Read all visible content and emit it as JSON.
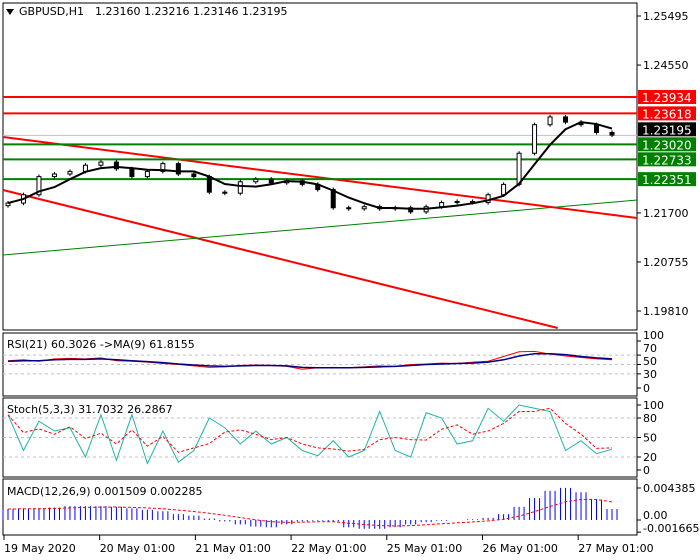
{
  "header": {
    "symbol": "GBPUSD,H1",
    "ohlc": "1.23160 1.23216 1.23146 1.23195",
    "menu_icon": "triangle-down-icon"
  },
  "colors": {
    "resistance": "#ff0000",
    "support": "#008000",
    "current": "#000000",
    "rsi": "#ff0000",
    "rsi_ma": "#000080",
    "stoch_main": "#20b2aa",
    "stoch_signal": "#ff0000",
    "macd_hist": "#0000ff",
    "macd_signal": "#ff0000"
  },
  "price_axis": {
    "ticks": [
      "1.25495",
      "1.24550",
      "1.21700",
      "1.20755",
      "1.19810"
    ],
    "tick_values": [
      1.25495,
      1.2455,
      1.217,
      1.20755,
      1.1981
    ]
  },
  "levels": [
    {
      "label": "1.23934",
      "value": 1.23934,
      "kind": "resistance"
    },
    {
      "label": "1.23618",
      "value": 1.23618,
      "kind": "resistance"
    },
    {
      "label": "1.23195",
      "value": 1.23195,
      "kind": "current"
    },
    {
      "label": "1.23020",
      "value": 1.2302,
      "kind": "support"
    },
    {
      "label": "1.22733",
      "value": 1.22733,
      "kind": "support"
    },
    {
      "label": "1.22351",
      "value": 1.22351,
      "kind": "support"
    }
  ],
  "trendlines": [
    {
      "kind": "resistance",
      "from": 1.23163,
      "to": 1.21602
    },
    {
      "kind": "resistance",
      "from": 1.22142,
      "to": 1.19482,
      "end_fraction": 0.875
    },
    {
      "kind": "support",
      "from": 1.20889,
      "to": 1.21949
    }
  ],
  "chart_data": {
    "type": "candlestick",
    "closes": [
      1.2189,
      1.2205,
      1.224,
      1.2245,
      1.225,
      1.2262,
      1.2268,
      1.2255,
      1.224,
      1.225,
      1.2265,
      1.2245,
      1.224,
      1.221,
      1.2208,
      1.223,
      1.2235,
      1.2228,
      1.2232,
      1.2225,
      1.2215,
      1.218,
      1.2178,
      1.2182,
      1.2178,
      1.218,
      1.2172,
      1.2182,
      1.219,
      1.2192,
      1.219,
      1.2205,
      1.2225,
      1.2285,
      1.234,
      1.2355,
      1.2345,
      1.234,
      1.2325,
      1.232
    ],
    "rsi": {
      "label": "RSI(21) 60.3026  ->MA(9) 61.8155",
      "ticks": [
        "100",
        "70",
        "50",
        "30",
        "0"
      ],
      "tick_values": [
        100,
        70,
        50,
        30,
        0
      ],
      "values": [
        58,
        60,
        57,
        62,
        63,
        62,
        64,
        58,
        57,
        55,
        52,
        50,
        47,
        44,
        45,
        48,
        49,
        48,
        46,
        40,
        43,
        44,
        43,
        45,
        47,
        46,
        50,
        51,
        53,
        52,
        55,
        57,
        67,
        77,
        78,
        72,
        68,
        65,
        62,
        60
      ],
      "ma": [
        57,
        58,
        58,
        60,
        61,
        61,
        62,
        60,
        58,
        56,
        54,
        51,
        49,
        47,
        46,
        47,
        48,
        48,
        47,
        44,
        43,
        43,
        43,
        44,
        45,
        46,
        48,
        50,
        51,
        52,
        53,
        55,
        60,
        68,
        73,
        73,
        71,
        67,
        64,
        62
      ]
    },
    "stoch": {
      "label": "Stoch(5,3,3) 31.7032 26.2867",
      "ticks": [
        "100",
        "80",
        "50",
        "20",
        "0"
      ],
      "tick_values": [
        100,
        80,
        50,
        20,
        0
      ],
      "k": [
        85,
        30,
        75,
        60,
        65,
        20,
        85,
        15,
        85,
        10,
        60,
        12,
        30,
        80,
        65,
        40,
        60,
        40,
        50,
        30,
        22,
        45,
        20,
        30,
        90,
        30,
        20,
        88,
        80,
        40,
        45,
        95,
        75,
        100,
        95,
        90,
        30,
        45,
        25,
        32
      ]
    },
    "macd": {
      "label": "MACD(12,26,9) 0.001509 0.002285",
      "ticks": [
        "0.004385",
        "0.00",
        "-0.001665"
      ],
      "tick_values": [
        0.004385,
        0,
        -0.001665
      ],
      "hist": [
        0.0015,
        0.0016,
        0.0016,
        0.0017,
        0.0019,
        0.0019,
        0.0019,
        0.0018,
        0.0016,
        0.0014,
        0.0012,
        0.0008,
        0.0006,
        0.0002,
        -0.0002,
        -0.0006,
        -0.0009,
        -0.001,
        -0.0006,
        -0.0002,
        -0.0001,
        -0.0002,
        -0.001,
        -0.0012,
        -0.0012,
        -0.001,
        -0.0006,
        -0.0003,
        -0.0001,
        0.0,
        0.0001,
        0.0003,
        0.0008,
        0.0018,
        0.003,
        0.004,
        0.0044,
        0.0038,
        0.0028,
        0.0015
      ]
    }
  },
  "time_axis": [
    "19 May 2020",
    "20 May 01:00",
    "21 May 01:00",
    "22 May 01:00",
    "25 May 01:00",
    "26 May 01:00",
    "27 May 01:00"
  ]
}
